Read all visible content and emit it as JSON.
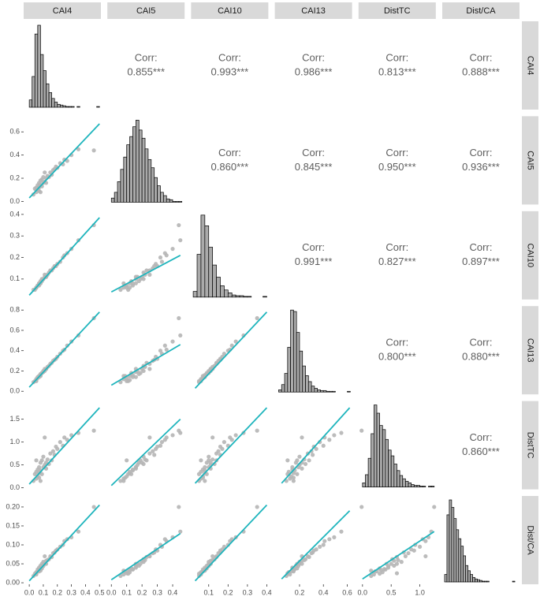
{
  "chart_data": {
    "type": "pairs",
    "variables": [
      "CAI4",
      "CAI5",
      "CAI10",
      "CAI13",
      "DistTC",
      "Dist/CA"
    ],
    "axes": [
      {
        "xlim": [
          -0.04,
          0.51
        ],
        "xticks": [
          {
            "value": 0,
            "label": "0.0"
          },
          0.1,
          0.2,
          0.3,
          0.4,
          0.5
        ]
      },
      {
        "xlim": [
          -0.026,
          0.478
        ],
        "xticks": [
          {
            "value": 0,
            "label": "0.0"
          },
          0.1,
          0.2,
          0.3,
          0.4
        ],
        "ylim": [
          -0.027,
          0.735
        ],
        "yticks": [
          {
            "value": 0,
            "label": "0.0"
          },
          0.2,
          0.4,
          0.6
        ]
      },
      {
        "xlim": [
          0.009,
          0.408
        ],
        "xticks": [
          0.1,
          0.2,
          0.3,
          0.4
        ],
        "ylim": [
          0.005,
          0.415
        ],
        "yticks": [
          0.1,
          0.2,
          0.3,
          0.4
        ]
      },
      {
        "xlim": [
          -0.007,
          0.64
        ],
        "xticks": [
          0.2,
          0.4,
          0.6
        ],
        "ylim": [
          -0.031,
          0.839
        ],
        "yticks": [
          {
            "value": 0,
            "label": "0.0"
          },
          0.2,
          0.4,
          0.6,
          0.8
        ]
      },
      {
        "xlim": [
          -0.069,
          1.278
        ],
        "xticks": [
          {
            "value": 0,
            "label": "0.0"
          },
          0.5,
          {
            "value": 1,
            "label": "1.0"
          }
        ],
        "ylim": [
          -0.034,
          1.897
        ],
        "yticks": [
          {
            "value": 0,
            "label": "0.0"
          },
          0.5,
          {
            "value": 1,
            "label": "1.0"
          },
          1.5
        ]
      },
      {
        "xlim": [
          -0.01,
          0.32
        ],
        "ylim": [
          -0.004,
          0.229
        ],
        "yticks": [
          {
            "value": 0,
            "label": "0.00"
          },
          0.05,
          {
            "value": 0.1,
            "label": "0.10"
          },
          0.15,
          {
            "value": 0.2,
            "label": "0.20"
          }
        ]
      }
    ],
    "observations": [
      [
        0.03,
        0.06,
        0.05,
        0.09,
        0.15,
        0.018
      ],
      [
        0.04,
        0.11,
        0.05,
        0.1,
        0.3,
        0.024
      ],
      [
        0.05,
        0.08,
        0.06,
        0.12,
        0.2,
        0.022
      ],
      [
        0.05,
        0.12,
        0.06,
        0.11,
        0.35,
        0.028
      ],
      [
        0.06,
        0.1,
        0.07,
        0.13,
        0.25,
        0.03
      ],
      [
        0.06,
        0.14,
        0.07,
        0.14,
        0.4,
        0.035
      ],
      [
        0.07,
        0.12,
        0.08,
        0.15,
        0.32,
        0.034
      ],
      [
        0.07,
        0.16,
        0.08,
        0.14,
        0.45,
        0.04
      ],
      [
        0.07,
        0.09,
        0.07,
        0.15,
        0.22,
        0.03
      ],
      [
        0.08,
        0.14,
        0.08,
        0.16,
        0.38,
        0.036
      ],
      [
        0.08,
        0.18,
        0.09,
        0.17,
        0.55,
        0.045
      ],
      [
        0.09,
        0.13,
        0.09,
        0.18,
        0.3,
        0.038
      ],
      [
        0.09,
        0.19,
        0.1,
        0.18,
        0.6,
        0.05
      ],
      [
        0.1,
        0.16,
        0.1,
        0.19,
        0.45,
        0.044
      ],
      [
        0.1,
        0.21,
        0.1,
        0.2,
        0.68,
        0.055
      ],
      [
        0.11,
        0.17,
        0.11,
        0.2,
        0.5,
        0.05
      ],
      [
        0.12,
        0.2,
        0.11,
        0.22,
        0.55,
        0.058
      ],
      [
        0.12,
        0.16,
        0.11,
        0.22,
        0.42,
        0.05
      ],
      [
        0.13,
        0.22,
        0.12,
        0.24,
        0.62,
        0.06
      ],
      [
        0.14,
        0.21,
        0.13,
        0.25,
        0.52,
        0.062
      ],
      [
        0.15,
        0.25,
        0.14,
        0.27,
        0.75,
        0.07
      ],
      [
        0.16,
        0.23,
        0.14,
        0.28,
        0.6,
        0.068
      ],
      [
        0.17,
        0.27,
        0.15,
        0.3,
        0.8,
        0.078
      ],
      [
        0.18,
        0.28,
        0.16,
        0.31,
        0.72,
        0.08
      ],
      [
        0.19,
        0.3,
        0.16,
        0.32,
        0.9,
        0.085
      ],
      [
        0.2,
        0.29,
        0.17,
        0.34,
        0.85,
        0.088
      ],
      [
        0.22,
        0.33,
        0.18,
        0.37,
        1.0,
        0.095
      ],
      [
        0.24,
        0.32,
        0.2,
        0.4,
        0.92,
        0.1
      ],
      [
        0.25,
        0.36,
        0.21,
        0.41,
        1.1,
        0.11
      ],
      [
        0.27,
        0.35,
        0.22,
        0.45,
        1.05,
        0.115
      ],
      [
        0.3,
        0.4,
        0.24,
        0.49,
        1.15,
        0.12
      ],
      [
        0.05,
        0.1,
        0.06,
        0.1,
        0.6,
        0.025
      ],
      [
        0.08,
        0.08,
        0.08,
        0.15,
        0.15,
        0.032
      ],
      [
        0.11,
        0.25,
        0.12,
        0.22,
        1.1,
        0.07
      ],
      [
        0.46,
        0.44,
        0.35,
        0.72,
        1.25,
        0.2
      ],
      [
        0.35,
        0.45,
        0.28,
        0.55,
        1.2,
        0.135
      ]
    ],
    "fits": [
      {
        "x": [
          0.0,
          0.5
        ],
        "y": [
          0.03,
          0.67
        ]
      },
      {
        "x": [
          0.0,
          0.5
        ],
        "y": [
          0.025,
          0.385
        ]
      },
      {
        "x": [
          0.0,
          0.45
        ],
        "y": [
          0.04,
          0.21
        ]
      },
      {
        "x": [
          0.0,
          0.5
        ],
        "y": [
          0.04,
          0.78
        ]
      },
      {
        "x": [
          0.0,
          0.45
        ],
        "y": [
          0.06,
          0.46
        ]
      },
      {
        "x": [
          0.03,
          0.4
        ],
        "y": [
          0.03,
          0.78
        ]
      },
      {
        "x": [
          0.0,
          0.5
        ],
        "y": [
          0.08,
          1.75
        ]
      },
      {
        "x": [
          0.0,
          0.45
        ],
        "y": [
          0.05,
          1.5
        ]
      },
      {
        "x": [
          0.03,
          0.4
        ],
        "y": [
          0.1,
          1.75
        ]
      },
      {
        "x": [
          0.05,
          0.62
        ],
        "y": [
          0.1,
          1.75
        ]
      },
      {
        "x": [
          0.0,
          0.5
        ],
        "y": [
          0.005,
          0.205
        ]
      },
      {
        "x": [
          0.0,
          0.45
        ],
        "y": [
          0.008,
          0.13
        ]
      },
      {
        "x": [
          0.03,
          0.4
        ],
        "y": [
          0.005,
          0.205
        ]
      },
      {
        "x": [
          0.05,
          0.62
        ],
        "y": [
          0.01,
          0.19
        ]
      },
      {
        "x": [
          0.0,
          1.25
        ],
        "y": [
          0.01,
          0.135
        ]
      }
    ],
    "histograms": [
      {
        "bins": [
          0,
          0.02,
          0.04,
          0.06,
          0.08,
          0.1,
          0.12,
          0.14,
          0.16,
          0.18,
          0.2,
          0.22,
          0.24,
          0.26,
          0.28,
          0.3,
          0.32,
          0.34,
          0.36,
          0.38,
          0.4,
          0.42,
          0.44,
          0.46,
          0.48,
          0.5
        ],
        "counts": [
          10,
          42,
          100,
          112,
          72,
          50,
          32,
          20,
          12,
          7,
          4,
          3,
          2,
          1,
          1,
          1,
          0,
          1,
          0,
          0,
          0,
          0,
          0,
          0,
          1
        ]
      },
      {
        "bins": [
          0,
          0.02,
          0.04,
          0.06,
          0.08,
          0.1,
          0.12,
          0.14,
          0.16,
          0.18,
          0.2,
          0.22,
          0.24,
          0.26,
          0.28,
          0.3,
          0.32,
          0.34,
          0.36,
          0.38,
          0.4,
          0.42,
          0.44,
          0.46
        ],
        "counts": [
          5,
          12,
          25,
          40,
          55,
          70,
          80,
          92,
          100,
          88,
          78,
          65,
          52,
          42,
          30,
          20,
          12,
          8,
          4,
          3,
          1,
          1,
          1
        ]
      },
      {
        "bins": [
          0.02,
          0.04,
          0.06,
          0.08,
          0.1,
          0.12,
          0.14,
          0.16,
          0.18,
          0.2,
          0.22,
          0.24,
          0.26,
          0.28,
          0.3,
          0.32,
          0.34,
          0.36,
          0.38,
          0.4
        ],
        "counts": [
          8,
          60,
          115,
          100,
          70,
          45,
          28,
          16,
          10,
          6,
          3,
          2,
          2,
          1,
          1,
          0,
          0,
          0,
          1
        ]
      },
      {
        "bins": [
          0.025,
          0.05,
          0.075,
          0.1,
          0.125,
          0.15,
          0.175,
          0.2,
          0.225,
          0.25,
          0.275,
          0.3,
          0.325,
          0.35,
          0.375,
          0.4,
          0.425,
          0.45,
          0.475,
          0.5,
          0.525,
          0.55,
          0.575,
          0.6,
          0.625
        ],
        "counts": [
          3,
          10,
          25,
          60,
          110,
          108,
          80,
          55,
          35,
          22,
          14,
          8,
          5,
          3,
          2,
          2,
          1,
          1,
          1,
          0,
          0,
          0,
          0,
          1
        ]
      },
      {
        "bins": [
          0,
          0.05,
          0.1,
          0.15,
          0.2,
          0.25,
          0.3,
          0.35,
          0.4,
          0.45,
          0.5,
          0.55,
          0.6,
          0.65,
          0.7,
          0.75,
          0.8,
          0.85,
          0.9,
          0.95,
          1.0,
          1.05,
          1.1,
          1.15,
          1.2,
          1.25
        ],
        "counts": [
          5,
          15,
          35,
          65,
          100,
          90,
          75,
          70,
          58,
          45,
          38,
          28,
          20,
          14,
          10,
          7,
          5,
          3,
          2,
          2,
          1,
          1,
          0,
          1,
          1
        ]
      },
      {
        "bins": [
          0,
          0.01,
          0.02,
          0.03,
          0.04,
          0.05,
          0.06,
          0.07,
          0.08,
          0.09,
          0.1,
          0.11,
          0.12,
          0.13,
          0.14,
          0.15,
          0.16,
          0.17,
          0.18,
          0.19,
          0.2,
          0.21,
          0.22,
          0.23,
          0.24,
          0.25,
          0.26,
          0.27,
          0.28,
          0.29,
          0.3
        ],
        "counts": [
          10,
          90,
          110,
          100,
          85,
          70,
          58,
          48,
          35,
          22,
          15,
          10,
          6,
          4,
          3,
          2,
          1,
          1,
          1,
          0,
          0,
          0,
          0,
          0,
          0,
          0,
          0,
          0,
          0,
          1
        ]
      }
    ],
    "correlations": {
      "title": "Corr:",
      "values": [
        [
          0.855,
          0.993,
          0.986,
          0.813,
          0.888
        ],
        [
          0.86,
          0.845,
          0.95,
          0.936
        ],
        [
          0.991,
          0.827,
          0.897
        ],
        [
          0.8,
          0.88
        ],
        [
          0.86
        ]
      ],
      "value_labels": [
        [
          "0.855***",
          "0.993***",
          "0.986***",
          "0.813***",
          "0.888***"
        ],
        [
          "0.860***",
          "0.845***",
          "0.950***",
          "0.936***"
        ],
        [
          "0.991***",
          "0.827***",
          "0.897***"
        ],
        [
          "0.800***",
          "0.880***"
        ],
        [
          "0.860***"
        ]
      ]
    },
    "point_color": "#b5b5b5",
    "line_color": "#1fb5bd",
    "hist_fill": "#aaaaaa",
    "hist_outline": "#000000",
    "strip_color": "#d9d9d9"
  }
}
